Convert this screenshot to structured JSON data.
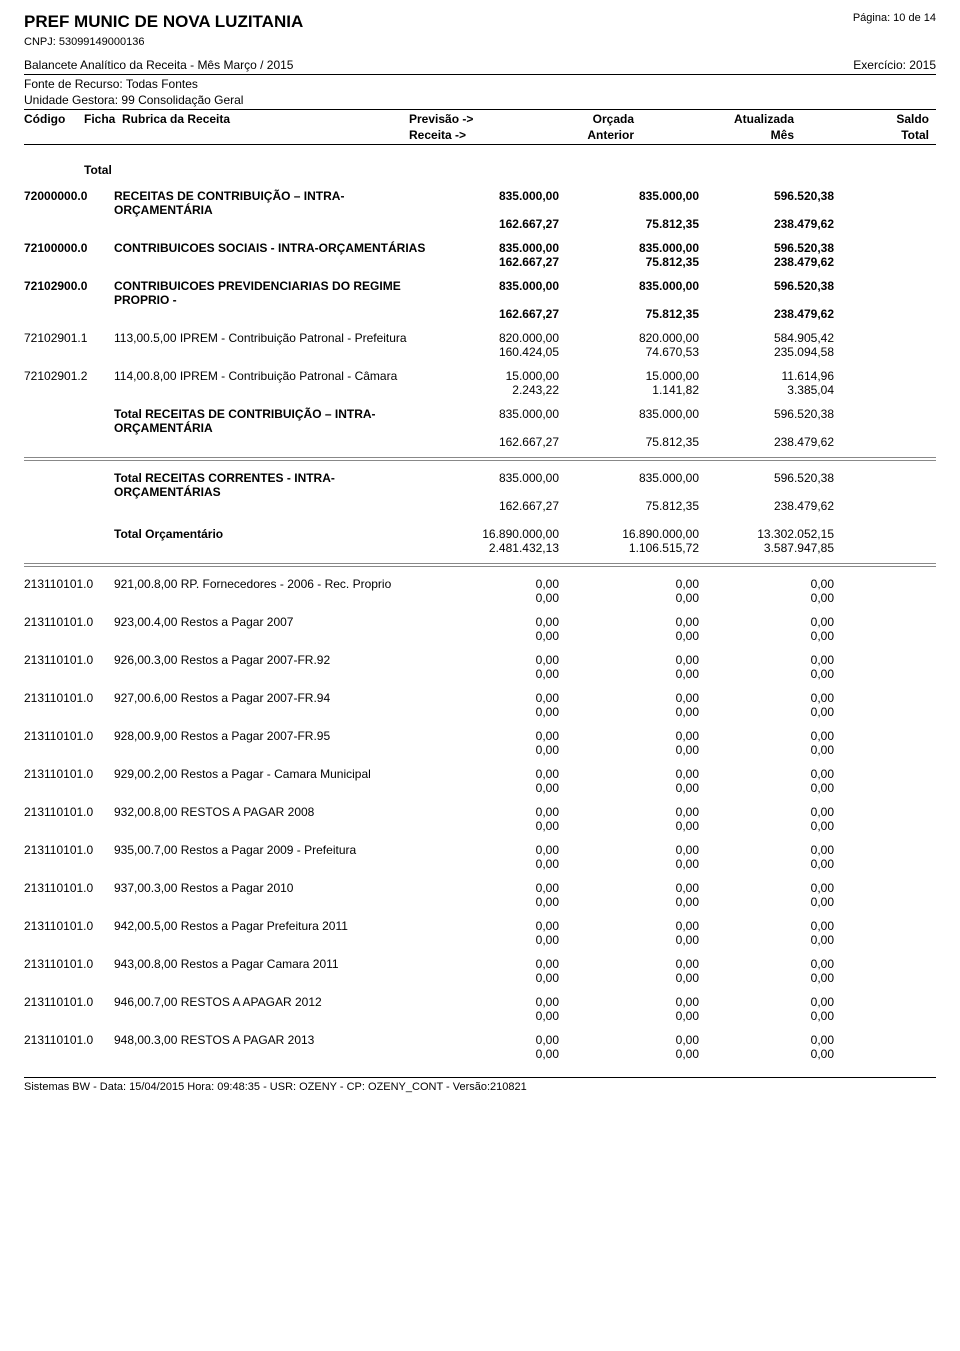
{
  "header": {
    "org_title": "PREF MUNIC DE NOVA LUZITANIA",
    "page_label": "Página: 10 de 14",
    "cnpj_label": "CNPJ: 53099149000136",
    "report_title": "Balancete Analítico da Receita - Mês Março / 2015",
    "exercise_label": "Exercício: 2015",
    "fonte": "Fonte de Recurso: Todas Fontes",
    "unidade": "Unidade Gestora: 99 Consolidação Geral"
  },
  "cols": {
    "codigo": "Código",
    "ficha": "Ficha",
    "rubrica": "Rubrica da Receita",
    "previsao": "Previsão ->",
    "orcada": "Orçada",
    "atualizada": "Atualizada",
    "saldo": "Saldo",
    "receita": "Receita   ->",
    "anterior": "Anterior",
    "mes": "Mês",
    "total": "Total",
    "total_label": "Total"
  },
  "rows": [
    {
      "code": "72000000.0",
      "ficha": "",
      "desc": "RECEITAS DE CONTRIBUIÇÃO – INTRA-ORÇAMENTÁRIA",
      "bold": true,
      "a": [
        "835.000,00",
        "835.000,00",
        "596.520,38"
      ],
      "b": [
        "162.667,27",
        "75.812,35",
        "238.479,62"
      ]
    },
    {
      "code": "72100000.0",
      "ficha": "",
      "desc": "CONTRIBUICOES SOCIAIS - INTRA-ORÇAMENTÁRIAS",
      "bold": true,
      "a": [
        "835.000,00",
        "835.000,00",
        "596.520,38"
      ],
      "b": [
        "162.667,27",
        "75.812,35",
        "238.479,62"
      ]
    },
    {
      "code": "72102900.0",
      "ficha": "",
      "desc": "CONTRIBUICOES PREVIDENCIARIAS DO REGIME PROPRIO -",
      "bold": true,
      "a": [
        "835.000,00",
        "835.000,00",
        "596.520,38"
      ],
      "b": [
        "162.667,27",
        "75.812,35",
        "238.479,62"
      ]
    },
    {
      "code": "72102901.1",
      "ficha": "113,00.",
      "desc": "5,00 IPREM - Contribuição Patronal - Prefeitura",
      "bold": false,
      "a": [
        "820.000,00",
        "820.000,00",
        "584.905,42"
      ],
      "b": [
        "160.424,05",
        "74.670,53",
        "235.094,58"
      ]
    },
    {
      "code": "72102901.2",
      "ficha": "114,00.",
      "desc": "8,00 IPREM - Contribuição Patronal - Câmara",
      "bold": false,
      "a": [
        "15.000,00",
        "15.000,00",
        "11.614,96"
      ],
      "b": [
        "2.243,22",
        "1.141,82",
        "3.385,04"
      ]
    }
  ],
  "totals1": {
    "desc": "Total RECEITAS DE CONTRIBUIÇÃO – INTRA-ORÇAMENTÁRIA",
    "a": [
      "835.000,00",
      "835.000,00",
      "596.520,38"
    ],
    "b": [
      "162.667,27",
      "75.812,35",
      "238.479,62"
    ]
  },
  "totals2": {
    "desc": "Total RECEITAS CORRENTES - INTRA-ORÇAMENTÁRIAS",
    "a": [
      "835.000,00",
      "835.000,00",
      "596.520,38"
    ],
    "b": [
      "162.667,27",
      "75.812,35",
      "238.479,62"
    ]
  },
  "totals3": {
    "desc": "Total Orçamentário",
    "a": [
      "16.890.000,00",
      "16.890.000,00",
      "13.302.052,15"
    ],
    "b": [
      "2.481.432,13",
      "1.106.515,72",
      "3.587.947,85"
    ]
  },
  "zero_rows": [
    {
      "code": "213110101.0",
      "ficha": "921,00.",
      "desc": "8,00 RP. Fornecedores - 2006 - Rec. Proprio"
    },
    {
      "code": "213110101.0",
      "ficha": "923,00.",
      "desc": "4,00 Restos a Pagar 2007"
    },
    {
      "code": "213110101.0",
      "ficha": "926,00.",
      "desc": "3,00 Restos a Pagar 2007-FR.92"
    },
    {
      "code": "213110101.0",
      "ficha": "927,00.",
      "desc": "6,00 Restos a Pagar 2007-FR.94"
    },
    {
      "code": "213110101.0",
      "ficha": "928,00.",
      "desc": "9,00 Restos a Pagar 2007-FR.95"
    },
    {
      "code": "213110101.0",
      "ficha": "929,00.",
      "desc": "2,00 Restos a Pagar - Camara Municipal"
    },
    {
      "code": "213110101.0",
      "ficha": "932,00.",
      "desc": "8,00 RESTOS A PAGAR 2008"
    },
    {
      "code": "213110101.0",
      "ficha": "935,00.",
      "desc": "7,00 Restos a Pagar 2009 - Prefeitura"
    },
    {
      "code": "213110101.0",
      "ficha": "937,00.",
      "desc": "3,00 Restos a Pagar 2010"
    },
    {
      "code": "213110101.0",
      "ficha": "942,00.",
      "desc": "5,00 Restos a Pagar Prefeitura 2011"
    },
    {
      "code": "213110101.0",
      "ficha": "943,00.",
      "desc": "8,00 Restos a Pagar Camara 2011"
    },
    {
      "code": "213110101.0",
      "ficha": "946,00.",
      "desc": "7,00 RESTOS A APAGAR 2012"
    },
    {
      "code": "213110101.0",
      "ficha": "948,00.",
      "desc": "3,00 RESTOS A PAGAR 2013"
    }
  ],
  "zero_val": "0,00",
  "footer": "Sistemas BW - Data: 15/04/2015 Hora: 09:48:35 - USR: OZENY - CP: OZENY_CONT - Versão:210821"
}
